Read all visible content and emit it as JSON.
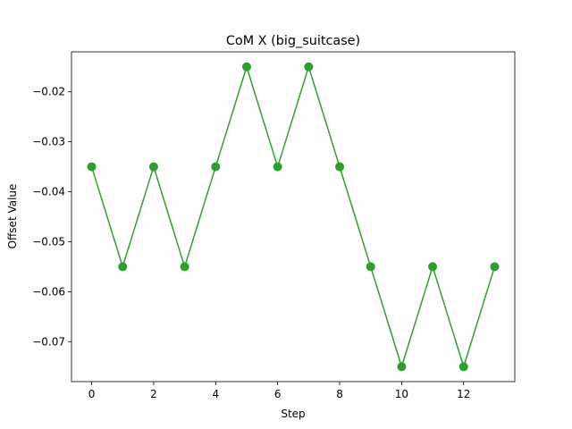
{
  "chart_data": {
    "type": "line",
    "title": "CoM X (big_suitcase)",
    "xlabel": "Step",
    "ylabel": "Offset Value",
    "xlim": [
      -0.65,
      13.65
    ],
    "ylim": [
      -0.078,
      -0.012
    ],
    "xticks": [
      0,
      2,
      4,
      6,
      8,
      10,
      12
    ],
    "xtick_labels": [
      "0",
      "2",
      "4",
      "6",
      "8",
      "10",
      "12"
    ],
    "yticks": [
      -0.07,
      -0.06,
      -0.05,
      -0.04,
      -0.03,
      -0.02
    ],
    "ytick_labels": [
      "−0.07",
      "−0.06",
      "−0.05",
      "−0.04",
      "−0.03",
      "−0.02"
    ],
    "grid": false,
    "series": [
      {
        "color": "#2ca02c",
        "marker": "circle",
        "x": [
          0,
          1,
          2,
          3,
          4,
          5,
          6,
          7,
          8,
          9,
          10,
          11,
          12,
          13
        ],
        "y": [
          -0.035,
          -0.055,
          -0.035,
          -0.055,
          -0.035,
          -0.015,
          -0.035,
          -0.015,
          -0.035,
          -0.055,
          -0.075,
          -0.055,
          -0.075,
          -0.055
        ]
      }
    ]
  }
}
